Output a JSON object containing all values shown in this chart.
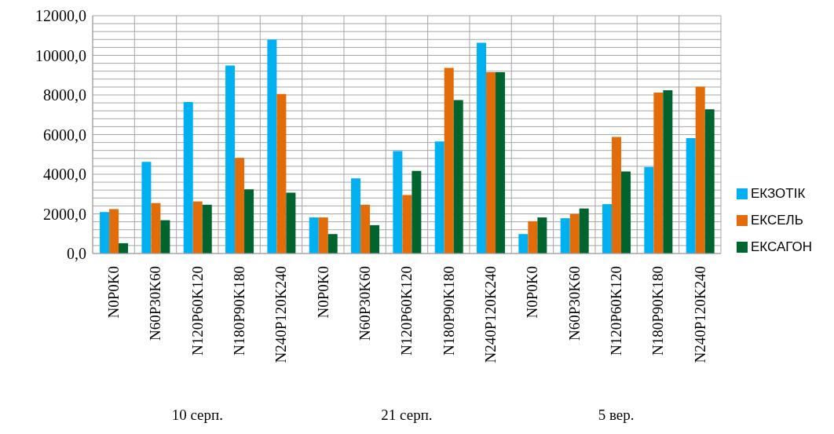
{
  "chart_data": {
    "type": "bar",
    "categories": [
      "N0P0K0",
      "N60P30K60",
      "N120P60K120",
      "N180P90K180",
      "N240P120K240",
      "N0P0K0",
      "N60P30K60",
      "N120P60K120",
      "N180P90K180",
      "N240P120K240",
      "N0P0K0",
      "N60P30K60",
      "N120P60K120",
      "N180P90K180",
      "N240P120K240"
    ],
    "series": [
      {
        "name": "ЕКЗОТІК",
        "color": "#00b0f0",
        "values": [
          2090,
          4620,
          7640,
          9490,
          10790,
          1820,
          3790,
          5170,
          5650,
          10630,
          980,
          1780,
          2490,
          4370,
          5820
        ]
      },
      {
        "name": "ЕКСЕЛЬ",
        "color": "#e36c0a",
        "values": [
          2240,
          2540,
          2620,
          4820,
          8050,
          1820,
          2460,
          2950,
          9370,
          9150,
          1630,
          1990,
          5880,
          8120,
          8420
        ]
      },
      {
        "name": "ЕКСАГОН",
        "color": "#00642e",
        "values": [
          520,
          1680,
          2460,
          3240,
          3070,
          980,
          1430,
          4170,
          7740,
          9150,
          1820,
          2270,
          4140,
          8240,
          7280
        ]
      }
    ],
    "ylim": [
      0,
      12000
    ],
    "yticks": [
      {
        "value": 0,
        "label": "0,0"
      },
      {
        "value": 400,
        "label": null
      },
      {
        "value": 800,
        "label": null
      },
      {
        "value": 1200,
        "label": null
      },
      {
        "value": 1600,
        "label": null
      },
      {
        "value": 2000,
        "label": "2000,0"
      },
      {
        "value": 2400,
        "label": null
      },
      {
        "value": 2800,
        "label": null
      },
      {
        "value": 3200,
        "label": null
      },
      {
        "value": 3600,
        "label": null
      },
      {
        "value": 4000,
        "label": "4000,0"
      },
      {
        "value": 4400,
        "label": null
      },
      {
        "value": 4800,
        "label": null
      },
      {
        "value": 5200,
        "label": null
      },
      {
        "value": 5600,
        "label": null
      },
      {
        "value": 6000,
        "label": "6000,0"
      },
      {
        "value": 6400,
        "label": null
      },
      {
        "value": 6800,
        "label": null
      },
      {
        "value": 7200,
        "label": null
      },
      {
        "value": 7600,
        "label": null
      },
      {
        "value": 8000,
        "label": "8000,0"
      },
      {
        "value": 8400,
        "label": null
      },
      {
        "value": 8800,
        "label": null
      },
      {
        "value": 9200,
        "label": null
      },
      {
        "value": 9600,
        "label": null
      },
      {
        "value": 10000,
        "label": "10000,0"
      },
      {
        "value": 10400,
        "label": null
      },
      {
        "value": 10800,
        "label": null
      },
      {
        "value": 11200,
        "label": null
      },
      {
        "value": 11600,
        "label": null
      },
      {
        "value": 12000,
        "label": "12000,0"
      }
    ],
    "annotations": [
      "10 серп.",
      "21 серп.",
      "5 вер."
    ],
    "grid": true,
    "legend": "right"
  }
}
